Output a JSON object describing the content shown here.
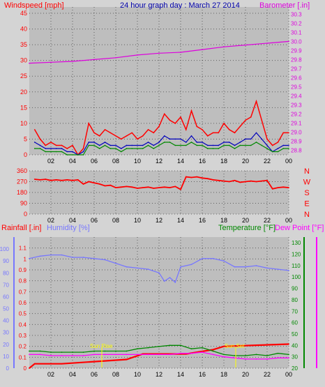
{
  "panels": {
    "wind": {
      "left_label": "Windspeed [mph]",
      "title": "24 hour graph day : March 27 2014",
      "right_label": "Barometer [.in]"
    },
    "direction": {
      "compass_letters": [
        "N",
        "W",
        "S",
        "E",
        "N"
      ]
    },
    "rain": {
      "rain_label": "Rainfall [.in]",
      "humidity_label": "Humidity [%]",
      "temp_label": "Temperature [°F]",
      "dew_label": "Dew Point [°F]",
      "sunrise_label": "Sun Rise",
      "sunset_label": "Sun Set"
    }
  },
  "colors": {
    "background": "#d4d4d4",
    "plot": "#bebebe",
    "wind_speed": "#ff0000",
    "wind_avg": "#0000bb",
    "wind_gust": "#008800",
    "barometer": "#dd00dd",
    "direction": "#ff0000",
    "rainfall": "#ff0000",
    "humidity": "#7777ff",
    "temperature": "#008800",
    "dew_point": "#ff00ff",
    "sun": "#ffff00",
    "title": "#0000aa"
  },
  "chart_data": [
    {
      "type": "line",
      "id": "wind",
      "title": "24 hour graph day : March 27 2014",
      "x_ticks": [
        "02",
        "04",
        "06",
        "08",
        "10",
        "12",
        "14",
        "16",
        "18",
        "20",
        "22",
        "00"
      ],
      "y_left": {
        "label": "Windspeed [mph]",
        "ticks": [
          0,
          5,
          10,
          15,
          20,
          25,
          30,
          35,
          40,
          45
        ]
      },
      "y_right": {
        "label": "Barometer [.in]",
        "ticks": [
          28.8,
          28.9,
          29.0,
          29.1,
          29.2,
          29.3,
          29.4,
          29.5,
          29.6,
          29.7,
          29.8,
          29.9,
          30.0,
          30.1,
          30.2,
          30.3
        ]
      },
      "series": [
        {
          "name": "Windspeed (mph)",
          "key": "wind_speed",
          "x": [
            0.5,
            1,
            1.5,
            2,
            2.5,
            3,
            3.5,
            4,
            4.5,
            5,
            5.5,
            6,
            6.5,
            7,
            7.5,
            8,
            8.5,
            9,
            9.5,
            10,
            10.5,
            11,
            11.5,
            12,
            12.5,
            13,
            13.5,
            14,
            14.5,
            15,
            15.5,
            16,
            16.5,
            17,
            17.5,
            18,
            18.5,
            19,
            19.5,
            20,
            20.5,
            21,
            21.5,
            22,
            22.5,
            23,
            23.5,
            24
          ],
          "y": [
            8,
            5,
            3,
            4,
            3,
            3,
            2,
            3,
            0,
            2,
            10,
            7,
            6,
            8,
            7,
            6,
            5,
            6,
            7,
            5,
            6,
            8,
            7,
            9,
            13,
            11,
            10,
            12,
            8,
            14,
            9,
            8,
            6,
            7,
            7,
            10,
            8,
            7,
            9,
            11,
            12,
            17,
            11,
            5,
            3,
            4,
            7,
            7
          ]
        },
        {
          "name": "Average wind (mph)",
          "key": "wind_avg",
          "x": [
            0.5,
            1,
            1.5,
            2,
            2.5,
            3,
            3.5,
            4,
            4.5,
            5,
            5.5,
            6,
            6.5,
            7,
            7.5,
            8,
            8.5,
            9,
            9.5,
            10,
            10.5,
            11,
            11.5,
            12,
            12.5,
            13,
            13.5,
            14,
            14.5,
            15,
            15.5,
            16,
            16.5,
            17,
            17.5,
            18,
            18.5,
            19,
            19.5,
            20,
            20.5,
            21,
            21.5,
            22,
            22.5,
            23,
            23.5,
            24
          ],
          "y": [
            4,
            3,
            2,
            2,
            2,
            2,
            1,
            1,
            0,
            1,
            4,
            4,
            3,
            4,
            3,
            3,
            2,
            3,
            3,
            3,
            3,
            4,
            3,
            4,
            6,
            5,
            5,
            5,
            4,
            6,
            4,
            4,
            3,
            3,
            3,
            4,
            4,
            3,
            4,
            5,
            5,
            7,
            5,
            3,
            1,
            2,
            3,
            3
          ]
        },
        {
          "name": "Wind gust (mph)",
          "key": "wind_gust",
          "x": [
            0.5,
            1,
            1.5,
            2,
            2.5,
            3,
            3.5,
            4,
            4.5,
            5,
            5.5,
            6,
            6.5,
            7,
            7.5,
            8,
            8.5,
            9,
            9.5,
            10,
            10.5,
            11,
            11.5,
            12,
            12.5,
            13,
            13.5,
            14,
            14.5,
            15,
            15.5,
            16,
            16.5,
            17,
            17.5,
            18,
            18.5,
            19,
            19.5,
            20,
            20.5,
            21,
            21.5,
            22,
            22.5,
            23,
            23.5,
            24
          ],
          "y": [
            2,
            2,
            1,
            1,
            1,
            1,
            0,
            0,
            0,
            0,
            3,
            3,
            2,
            3,
            2,
            2,
            1,
            2,
            2,
            2,
            2,
            3,
            2,
            3,
            4,
            4,
            3,
            3,
            3,
            4,
            3,
            3,
            2,
            2,
            2,
            3,
            3,
            2,
            3,
            3,
            3,
            4,
            3,
            2,
            1,
            1,
            2,
            2
          ]
        },
        {
          "name": "Barometer (in)",
          "key": "barometer",
          "axis": "right",
          "x": [
            0,
            2,
            4,
            6,
            8,
            10,
            12,
            14,
            16,
            18,
            20,
            22,
            24
          ],
          "y": [
            29.76,
            29.77,
            29.78,
            29.8,
            29.82,
            29.85,
            29.87,
            29.88,
            29.91,
            29.94,
            29.96,
            29.98,
            30.0
          ]
        }
      ]
    },
    {
      "type": "line",
      "id": "direction",
      "x_ticks": [
        "02",
        "04",
        "06",
        "08",
        "10",
        "12",
        "14",
        "16",
        "18",
        "20",
        "22",
        "00"
      ],
      "y_left": {
        "ticks": [
          0,
          90,
          180,
          270,
          360
        ]
      },
      "series": [
        {
          "name": "Wind direction (deg)",
          "key": "direction",
          "x": [
            0.5,
            1,
            1.5,
            2,
            2.5,
            3,
            3.5,
            4,
            4.5,
            5,
            5.5,
            6,
            6.5,
            7,
            7.5,
            8,
            8.5,
            9,
            9.5,
            10,
            10.5,
            11,
            11.5,
            12,
            12.5,
            13,
            13.5,
            14,
            14.5,
            15,
            15.5,
            16,
            16.5,
            17,
            17.5,
            18,
            18.5,
            19,
            19.5,
            20,
            20.5,
            21,
            21.5,
            22,
            22.5,
            23,
            23.5,
            24
          ],
          "y": [
            290,
            285,
            290,
            280,
            285,
            280,
            285,
            280,
            285,
            250,
            270,
            260,
            250,
            235,
            240,
            220,
            225,
            230,
            225,
            215,
            220,
            225,
            215,
            220,
            225,
            220,
            230,
            205,
            310,
            305,
            310,
            300,
            295,
            285,
            280,
            275,
            270,
            280,
            265,
            270,
            275,
            270,
            275,
            280,
            210,
            220,
            225,
            220
          ]
        }
      ]
    },
    {
      "type": "line",
      "id": "rain",
      "x_ticks": [
        "02",
        "04",
        "06",
        "08",
        "10",
        "12",
        "14",
        "16",
        "18",
        "20",
        "22",
        "00"
      ],
      "y_rain": {
        "label": "Rainfall [.in]",
        "ticks": [
          0,
          0.1,
          0.2,
          0.3,
          0.4,
          0.5,
          0.6,
          0.7,
          0.8,
          0.9,
          1,
          1.1
        ]
      },
      "y_humidity": {
        "label": "Humidity [%]",
        "ticks": [
          0,
          10,
          20,
          30,
          40,
          50,
          60,
          70,
          80,
          90,
          100
        ]
      },
      "y_temp": {
        "label": "Temperature [°F]",
        "ticks": [
          20,
          30,
          40,
          50,
          60,
          70,
          80,
          90,
          100,
          110,
          120,
          130
        ]
      },
      "series": [
        {
          "name": "Rainfall (in)",
          "key": "rainfall",
          "x": [
            0,
            0.5,
            3,
            6,
            9,
            10.5,
            14.5,
            17,
            18,
            21,
            24
          ],
          "y": [
            0,
            0.04,
            0.04,
            0.06,
            0.08,
            0.13,
            0.13,
            0.17,
            0.2,
            0.21,
            0.22
          ]
        },
        {
          "name": "Humidity (%)",
          "key": "humidity",
          "axis": "humidity",
          "x": [
            0,
            1,
            2,
            3,
            4,
            5,
            6,
            7,
            8,
            9,
            10,
            11,
            12,
            12.5,
            13,
            13.5,
            14,
            15,
            16,
            17,
            18,
            19,
            20,
            21,
            22,
            23,
            24
          ],
          "y": [
            92,
            94,
            95,
            95,
            93,
            93,
            92,
            91,
            88,
            85,
            84,
            83,
            80,
            73,
            76,
            72,
            85,
            87,
            92,
            92,
            90,
            85,
            85,
            86,
            84,
            83,
            82
          ]
        },
        {
          "name": "Temperature (°F)",
          "key": "temperature",
          "axis": "temp",
          "x": [
            0,
            1,
            2,
            3,
            4,
            5,
            6,
            7,
            8,
            9,
            10,
            11,
            12,
            13,
            14,
            15,
            16,
            17,
            18,
            19,
            20,
            21,
            22,
            23,
            24
          ],
          "y": [
            35,
            35,
            34,
            34,
            34,
            34,
            35,
            35,
            35,
            35,
            37,
            38,
            39,
            40,
            40,
            37,
            38,
            35,
            32,
            31,
            31,
            32,
            31,
            33,
            32
          ]
        },
        {
          "name": "Dew Point (°F)",
          "key": "dew_point",
          "axis": "temp",
          "x": [
            0,
            1,
            2,
            3,
            4,
            5,
            6,
            7,
            8,
            9,
            10,
            11,
            12,
            13,
            14,
            15,
            16,
            17,
            18,
            19,
            20,
            21,
            22,
            23,
            24
          ],
          "y": [
            32,
            32,
            31,
            31,
            31,
            31,
            32,
            32,
            32,
            32,
            32,
            32,
            32,
            32,
            33,
            33,
            34,
            32,
            30,
            29,
            28,
            28,
            28,
            29,
            29
          ]
        }
      ]
    }
  ]
}
